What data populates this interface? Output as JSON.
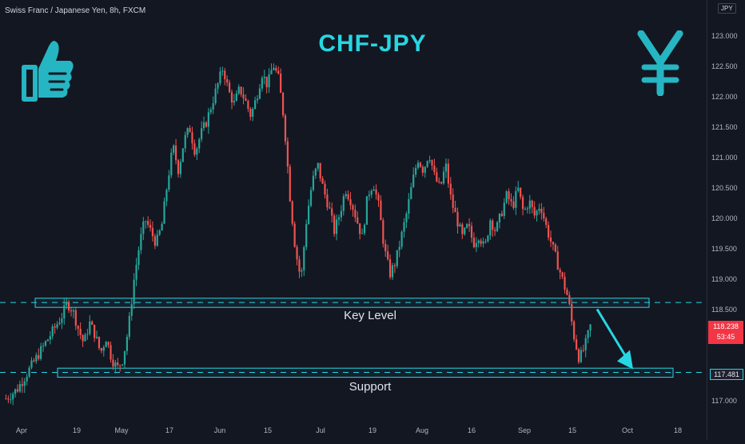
{
  "header": {
    "symbol": "Swiss Franc / Japanese Yen, 8h, FXCM",
    "title": "CHF-JPY",
    "currency": "JPY"
  },
  "icons": {
    "left": "thumbs-up-icon",
    "right": "yen-icon"
  },
  "colors": {
    "accent": "#26d7e3",
    "up": "#26a69a",
    "down": "#ef5350",
    "background": "#131722"
  },
  "markers": {
    "current_price": "118.238",
    "countdown": "53:45",
    "support_price": "117.481"
  },
  "chart_data": {
    "type": "candlestick",
    "title": "CHF-JPY",
    "price_axis": [
      "123.000",
      "122.500",
      "122.000",
      "121.500",
      "121.000",
      "120.500",
      "120.000",
      "119.500",
      "119.000",
      "118.500",
      "117.000"
    ],
    "date_axis": [
      "Apr",
      "19",
      "May",
      "17",
      "Jun",
      "15",
      "Jul",
      "19",
      "Aug",
      "16",
      "Sep",
      "15",
      "Oct",
      "18"
    ],
    "ylim": [
      116.85,
      123.15
    ],
    "levels": [
      {
        "label": "Key Level",
        "low": 118.55,
        "high": 118.7,
        "line": 118.63
      },
      {
        "label": "Support",
        "low": 117.4,
        "high": 117.55,
        "line": 117.48
      }
    ],
    "projection": {
      "from": 118.52,
      "to": 117.48
    },
    "price_path": [
      [
        0,
        117.05
      ],
      [
        2,
        117.2
      ],
      [
        4,
        117.5
      ],
      [
        6,
        117.8
      ],
      [
        8,
        118.1
      ],
      [
        10,
        118.4
      ],
      [
        11,
        118.62
      ],
      [
        12,
        118.5
      ],
      [
        13,
        118.2
      ],
      [
        14,
        117.95
      ],
      [
        15,
        118.3
      ],
      [
        16,
        118.1
      ],
      [
        17,
        117.8
      ],
      [
        18,
        118.05
      ],
      [
        19,
        117.7
      ],
      [
        20,
        117.55
      ],
      [
        21,
        117.7
      ],
      [
        22,
        118.2
      ],
      [
        23,
        119.0
      ],
      [
        24,
        119.6
      ],
      [
        25,
        120.0
      ],
      [
        26,
        119.8
      ],
      [
        27,
        119.6
      ],
      [
        28,
        119.9
      ],
      [
        29,
        120.6
      ],
      [
        30,
        121.2
      ],
      [
        31,
        120.8
      ],
      [
        32,
        121.3
      ],
      [
        33,
        121.5
      ],
      [
        34,
        121.1
      ],
      [
        35,
        121.4
      ],
      [
        36,
        121.6
      ],
      [
        37,
        121.9
      ],
      [
        38,
        122.2
      ],
      [
        39,
        122.5
      ],
      [
        40,
        122.1
      ],
      [
        41,
        121.9
      ],
      [
        42,
        122.15
      ],
      [
        43,
        121.95
      ],
      [
        44,
        121.7
      ],
      [
        45,
        122.0
      ],
      [
        46,
        122.4
      ],
      [
        47,
        122.2
      ],
      [
        48,
        122.55
      ],
      [
        49,
        122.3
      ],
      [
        50,
        121.6
      ],
      [
        51,
        120.4
      ],
      [
        52,
        119.5
      ],
      [
        53,
        119.0
      ],
      [
        54,
        120.0
      ],
      [
        55,
        120.6
      ],
      [
        56,
        120.9
      ],
      [
        57,
        120.5
      ],
      [
        58,
        120.2
      ],
      [
        59,
        119.8
      ],
      [
        60,
        120.1
      ],
      [
        61,
        120.5
      ],
      [
        62,
        120.3
      ],
      [
        63,
        120.0
      ],
      [
        64,
        119.7
      ],
      [
        65,
        120.4
      ],
      [
        66,
        120.6
      ],
      [
        67,
        120.2
      ],
      [
        68,
        119.5
      ],
      [
        69,
        119.1
      ],
      [
        70,
        119.3
      ],
      [
        71,
        119.7
      ],
      [
        72,
        120.1
      ],
      [
        73,
        120.6
      ],
      [
        74,
        121.0
      ],
      [
        75,
        120.8
      ],
      [
        76,
        121.1
      ],
      [
        77,
        120.7
      ],
      [
        78,
        120.5
      ],
      [
        79,
        120.9
      ],
      [
        80,
        120.3
      ],
      [
        81,
        120.0
      ],
      [
        82,
        119.7
      ],
      [
        83,
        119.9
      ],
      [
        84,
        119.6
      ],
      [
        85,
        119.75
      ],
      [
        86,
        119.5
      ],
      [
        87,
        120.0
      ],
      [
        88,
        119.8
      ],
      [
        89,
        120.1
      ],
      [
        90,
        120.4
      ],
      [
        91,
        120.2
      ],
      [
        92,
        120.5
      ],
      [
        93,
        120.1
      ],
      [
        94,
        120.3
      ],
      [
        95,
        120.05
      ],
      [
        96,
        120.25
      ],
      [
        97,
        119.9
      ],
      [
        98,
        119.6
      ],
      [
        99,
        119.3
      ],
      [
        100,
        119.0
      ],
      [
        101,
        118.7
      ],
      [
        102,
        118.1
      ],
      [
        103,
        117.7
      ],
      [
        104,
        117.9
      ],
      [
        105,
        118.238
      ]
    ]
  }
}
